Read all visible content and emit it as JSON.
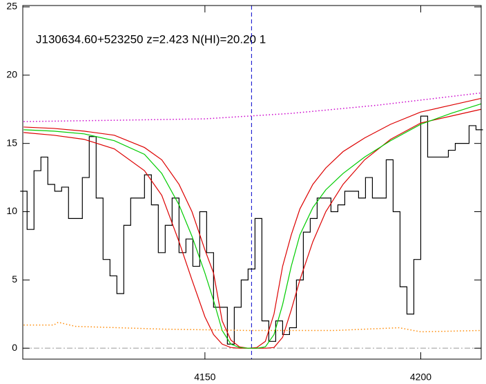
{
  "chart_data": {
    "type": "line",
    "title": "J130634.60+523250 z=2.423 N(HI)=20.20 1",
    "xlim": [
      4107.8,
      4214
    ],
    "ylim": [
      -0.8,
      25.1
    ],
    "xticks": [
      4150,
      4200
    ],
    "yticks": [
      0,
      5,
      10,
      15,
      20,
      25
    ],
    "hline": 0,
    "vline": 4160.8,
    "series": [
      {
        "color": "#000000",
        "style": "step",
        "x": [
          4108.0,
          4109.6,
          4111.2,
          4112.8,
          4114.4,
          4116.0,
          4117.6,
          4119.2,
          4120.8,
          4122.4,
          4124.0,
          4125.6,
          4127.2,
          4128.8,
          4130.4,
          4132.0,
          4133.6,
          4135.2,
          4136.8,
          4138.4,
          4140.0,
          4141.6,
          4143.2,
          4144.8,
          4146.4,
          4148.0,
          4149.6,
          4151.2,
          4152.8,
          4154.4,
          4156.0,
          4157.6,
          4159.2,
          4160.8,
          4162.4,
          4164.0,
          4165.6,
          4167.2,
          4168.8,
          4170.4,
          4172.0,
          4173.6,
          4175.2,
          4176.8,
          4178.4,
          4180.0,
          4181.6,
          4183.2,
          4184.8,
          4186.4,
          4188.0,
          4189.6,
          4191.2,
          4192.8,
          4194.4,
          4196.0,
          4197.6,
          4199.2,
          4200.8,
          4202.4,
          4204.0,
          4205.6,
          4207.2,
          4208.8,
          4210.4,
          4212.0,
          4213.6
        ],
        "values": [
          11.5,
          8.7,
          13,
          14,
          12,
          11.5,
          11.8,
          9.5,
          9.5,
          12.5,
          15.5,
          11,
          6.5,
          5.3,
          4,
          9,
          11,
          11,
          12.7,
          10.5,
          7,
          9,
          11,
          7,
          8,
          6,
          10,
          7,
          3,
          3,
          0.3,
          3,
          5,
          5.8,
          9.5,
          2,
          0.5,
          2,
          1,
          1.5,
          5,
          8.5,
          9.5,
          11,
          11,
          10,
          10.5,
          11.5,
          11.5,
          11,
          12.5,
          11,
          11,
          13.8,
          10,
          4.5,
          2.5,
          6.5,
          17,
          14,
          14,
          14,
          14.5,
          15,
          15,
          16.3,
          16
        ]
      },
      {
        "color": "#dd0000",
        "style": "solid",
        "x": [
          4108,
          4115,
          4122,
          4129,
          4136,
          4140,
          4144,
          4147,
          4150,
          4152,
          4154,
          4156,
          4158,
          4160,
          4162,
          4164,
          4166,
          4168,
          4170,
          4172,
          4175,
          4178,
          4182,
          4187,
          4193,
          4200,
          4207,
          4214
        ],
        "values": [
          16.2,
          16.1,
          15.9,
          15.6,
          14.7,
          13.8,
          12.0,
          10.0,
          7.2,
          5.5,
          2.0,
          0.6,
          0.1,
          0,
          0.05,
          0.5,
          2.5,
          6.0,
          8.3,
          10.2,
          12.0,
          13.2,
          14.4,
          15.4,
          16.4,
          17.3,
          17.8,
          18.3
        ]
      },
      {
        "color": "#dd0000",
        "style": "solid",
        "x": [
          4108,
          4115,
          4122,
          4129,
          4136,
          4140,
          4144,
          4147,
          4150,
          4152,
          4154,
          4156,
          4158,
          4160,
          4162,
          4164,
          4166,
          4168,
          4170,
          4172,
          4175,
          4178,
          4182,
          4187,
          4193,
          4200,
          4207,
          4214
        ],
        "values": [
          15.8,
          15.6,
          15.3,
          14.6,
          13.0,
          11.2,
          7.8,
          5.0,
          2.3,
          1.0,
          0.3,
          0.05,
          0,
          0,
          0,
          0,
          0.05,
          0.8,
          2.8,
          5.0,
          7.8,
          10.0,
          12.0,
          13.8,
          15.3,
          16.5,
          17.0,
          17.5
        ]
      },
      {
        "color": "#00cc00",
        "style": "solid",
        "x": [
          4108,
          4115,
          4122,
          4129,
          4136,
          4140,
          4144,
          4147,
          4150,
          4152,
          4154,
          4156,
          4158,
          4160,
          4162,
          4164,
          4166,
          4168,
          4170,
          4172,
          4175,
          4178,
          4182,
          4187,
          4193,
          4200,
          4207,
          4214
        ],
        "values": [
          16.0,
          15.9,
          15.7,
          15.2,
          14.2,
          12.8,
          10.5,
          8.2,
          5.5,
          3.5,
          1.3,
          0.3,
          0.05,
          0,
          0,
          0.1,
          1.0,
          3.2,
          6.0,
          8.3,
          10.3,
          11.6,
          12.8,
          14.0,
          15.2,
          16.4,
          17.2,
          17.9
        ]
      },
      {
        "color": "#cc00cc",
        "style": "dotted",
        "x": [
          4108,
          4130,
          4150,
          4170,
          4190,
          4214
        ],
        "values": [
          16.6,
          16.7,
          16.8,
          17.2,
          17.8,
          18.7
        ]
      },
      {
        "color": "#ff8800",
        "style": "dotted",
        "x": [
          4108,
          4115,
          4116,
          4120,
          4140,
          4160,
          4180,
          4195,
          4200,
          4214
        ],
        "values": [
          1.7,
          1.7,
          1.9,
          1.6,
          1.4,
          1.3,
          1.3,
          1.5,
          1.2,
          1.3
        ]
      }
    ]
  }
}
